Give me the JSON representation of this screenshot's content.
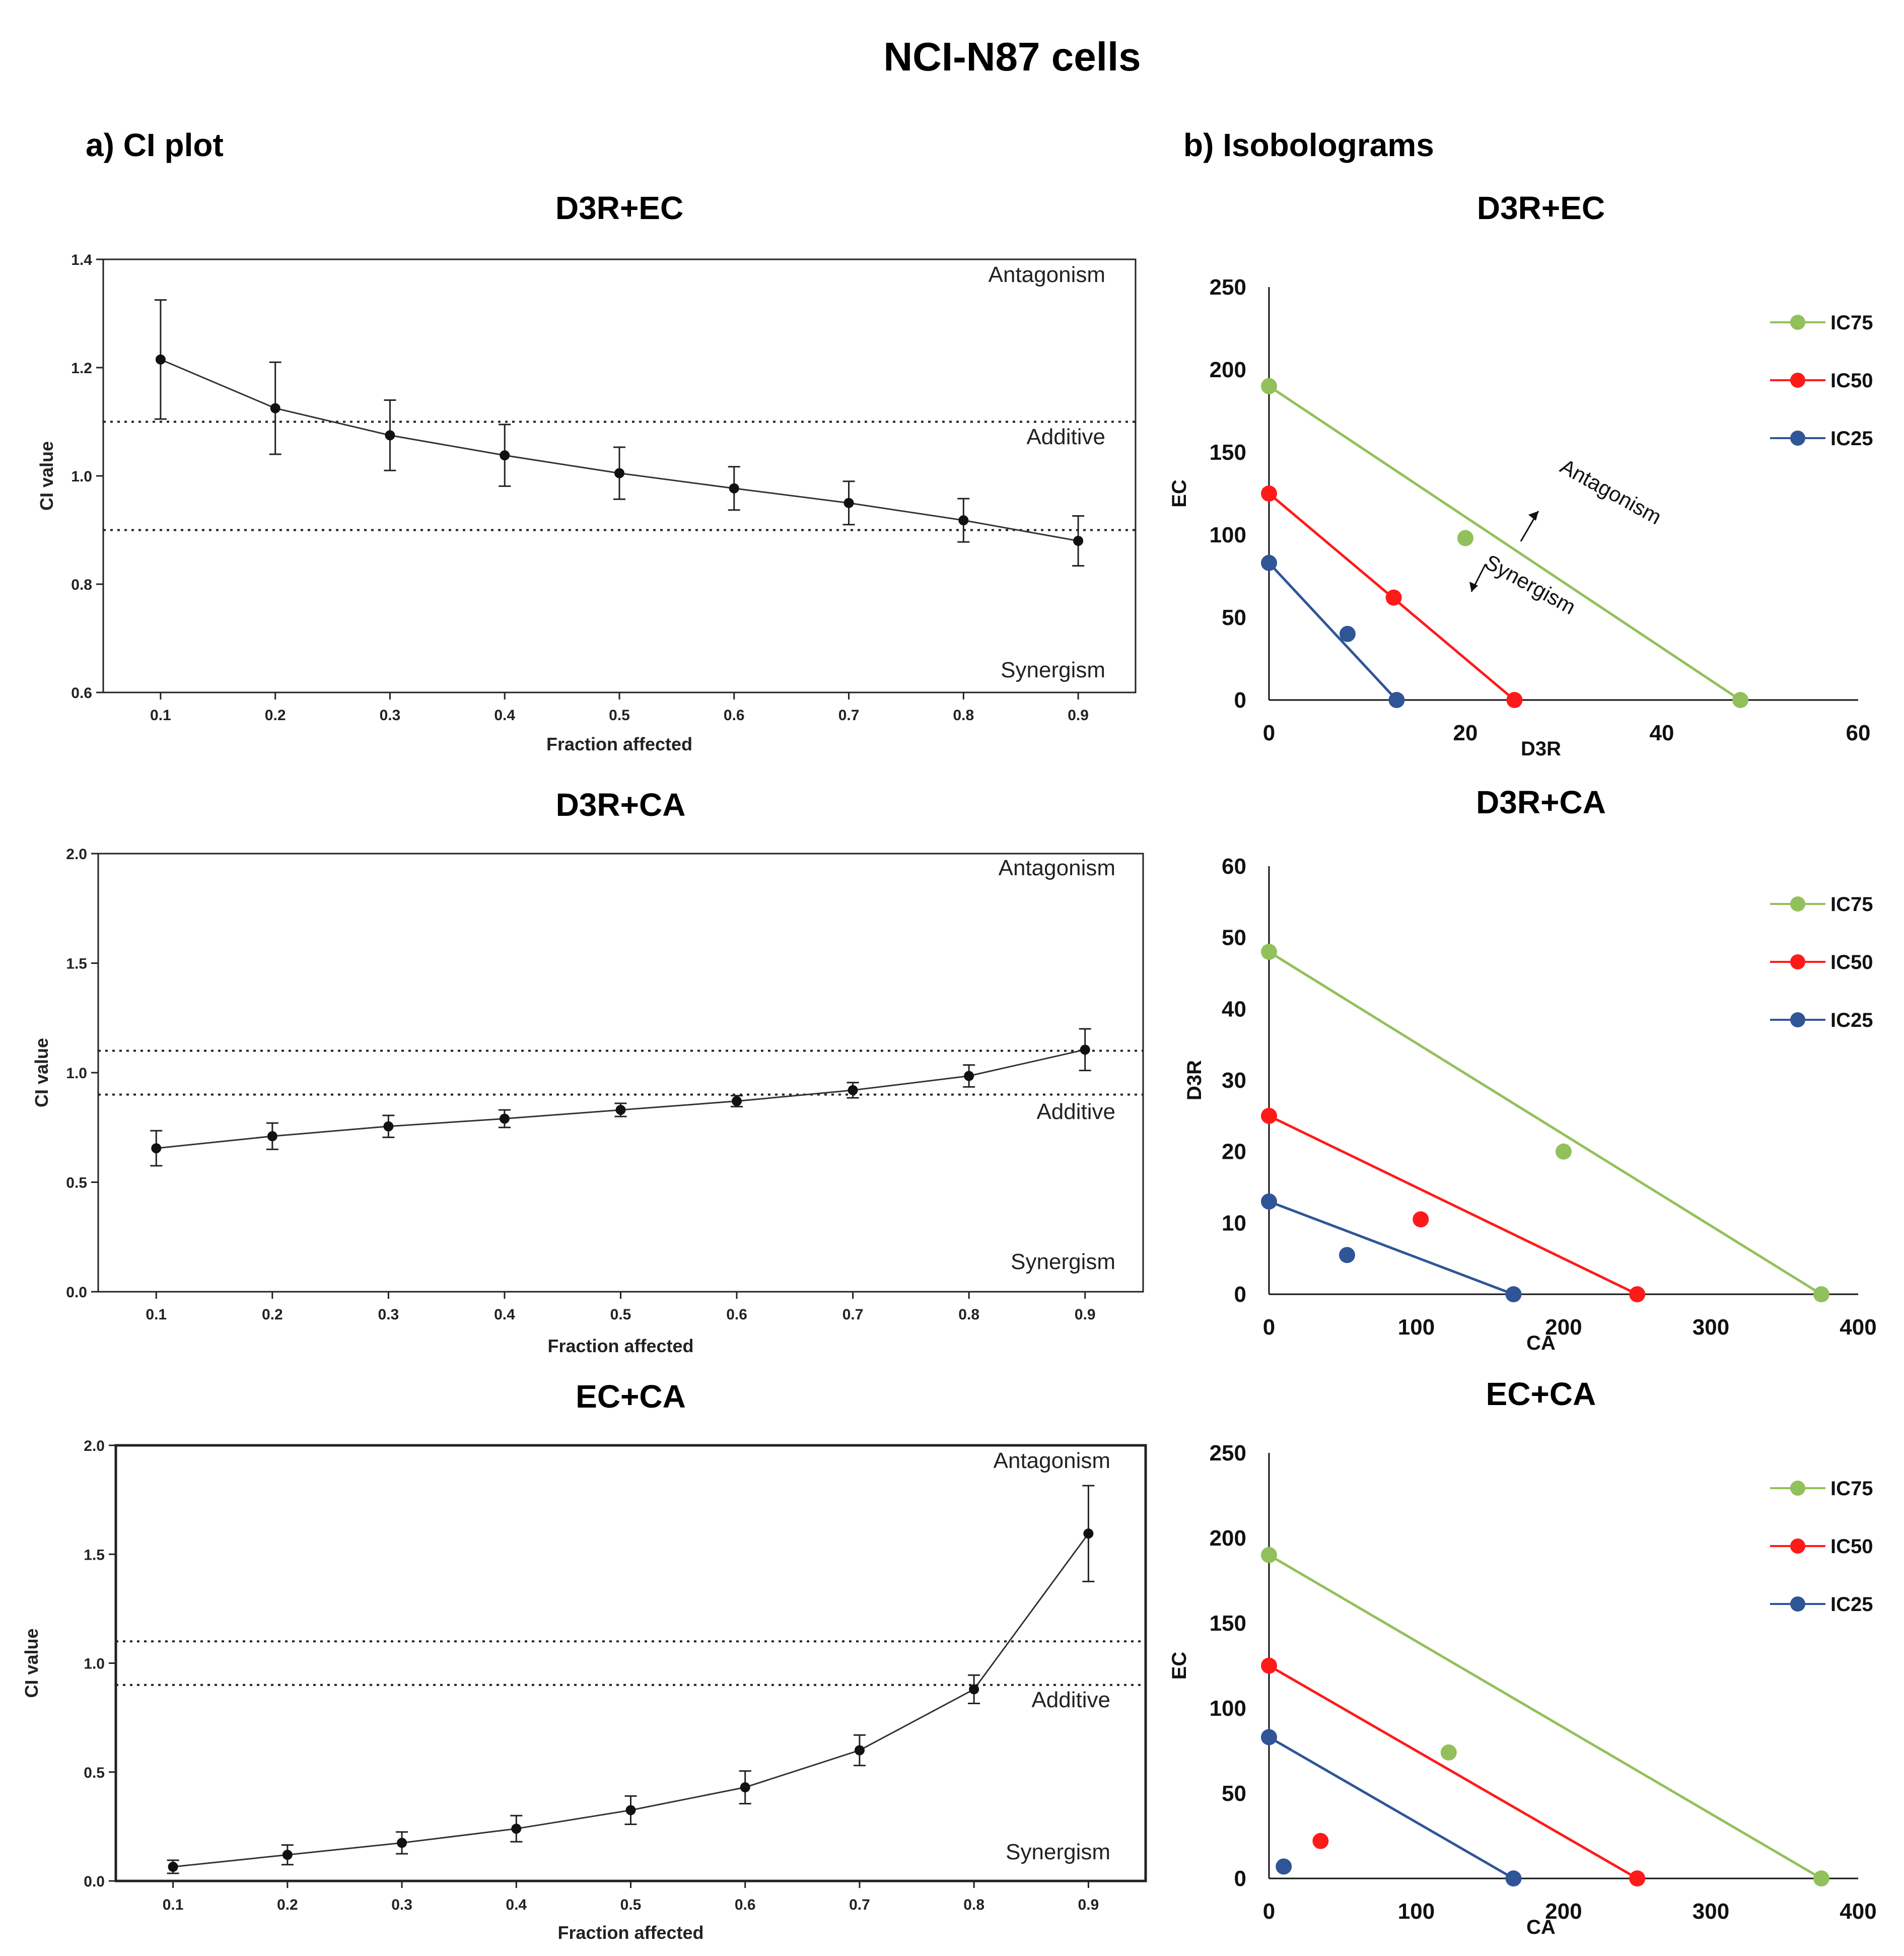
{
  "figure": {
    "main_title": "NCI-N87 cells",
    "section_a": "a) CI plot",
    "section_b": "b) Isobolograms"
  },
  "colors": {
    "ic75": "#92c05a",
    "ic50": "#ff1a1a",
    "ic25": "#2f5597",
    "ci_line": "#333333"
  },
  "chart_data": [
    {
      "id": "ci1",
      "type": "line",
      "title": "D3R+EC",
      "xlabel": "Fraction affected",
      "ylabel": "CI value",
      "xlim": [
        0.05,
        0.95
      ],
      "ylim": [
        0.6,
        1.4
      ],
      "yticks": [
        "0.6",
        "0.8",
        "1.0",
        "1.2",
        "1.4"
      ],
      "xticks": [
        "0.1",
        "0.2",
        "0.3",
        "0.4",
        "0.5",
        "0.6",
        "0.7",
        "0.8",
        "0.9"
      ],
      "x": [
        0.1,
        0.2,
        0.3,
        0.4,
        0.5,
        0.6,
        0.7,
        0.8,
        0.9
      ],
      "y": [
        1.215,
        1.125,
        1.075,
        1.038,
        1.005,
        0.977,
        0.95,
        0.918,
        0.88
      ],
      "err": [
        0.11,
        0.085,
        0.065,
        0.057,
        0.048,
        0.04,
        0.04,
        0.04,
        0.046
      ],
      "thresholds": [
        1.1,
        0.9
      ],
      "regions": {
        "top": "Antagonism",
        "middle": "Additive",
        "bottom": "Synergism"
      }
    },
    {
      "id": "ci2",
      "type": "line",
      "title": "D3R+CA",
      "xlabel": "Fraction affected",
      "ylabel": "CI value",
      "xlim": [
        0.05,
        0.95
      ],
      "ylim": [
        0.0,
        2.0
      ],
      "yticks": [
        "0.0",
        "0.5",
        "1.0",
        "1.5",
        "2.0"
      ],
      "xticks": [
        "0.1",
        "0.2",
        "0.3",
        "0.4",
        "0.5",
        "0.6",
        "0.7",
        "0.8",
        "0.9"
      ],
      "x": [
        0.1,
        0.2,
        0.3,
        0.4,
        0.5,
        0.6,
        0.7,
        0.8,
        0.9
      ],
      "y": [
        0.655,
        0.71,
        0.755,
        0.79,
        0.83,
        0.87,
        0.92,
        0.985,
        1.105
      ],
      "err": [
        0.08,
        0.06,
        0.05,
        0.04,
        0.03,
        0.025,
        0.035,
        0.05,
        0.095
      ],
      "thresholds": [
        1.1,
        0.9
      ],
      "regions": {
        "top": "Antagonism",
        "middle": "Additive",
        "bottom": "Synergism"
      }
    },
    {
      "id": "ci3",
      "type": "line",
      "title": "EC+CA",
      "xlabel": "Fraction affected",
      "ylabel": "CI value",
      "xlim": [
        0.05,
        0.95
      ],
      "ylim": [
        0.0,
        2.0
      ],
      "yticks": [
        "0.0",
        "0.5",
        "1.0",
        "1.5",
        "2.0"
      ],
      "xticks": [
        "0.1",
        "0.2",
        "0.3",
        "0.4",
        "0.5",
        "0.6",
        "0.7",
        "0.8",
        "0.9"
      ],
      "x": [
        0.1,
        0.2,
        0.3,
        0.4,
        0.5,
        0.6,
        0.7,
        0.8,
        0.9
      ],
      "y": [
        0.065,
        0.12,
        0.175,
        0.24,
        0.325,
        0.43,
        0.6,
        0.88,
        1.595
      ],
      "err": [
        0.03,
        0.045,
        0.05,
        0.06,
        0.065,
        0.075,
        0.07,
        0.065,
        0.22
      ],
      "thresholds": [
        1.1,
        0.9
      ],
      "regions": {
        "top": "Antagonism",
        "middle": "Additive",
        "bottom": "Synergism"
      }
    },
    {
      "id": "iso1",
      "type": "scatter",
      "title": "D3R+EC",
      "xlabel": "D3R",
      "ylabel": "EC",
      "xlim": [
        0,
        60
      ],
      "ylim": [
        0,
        250
      ],
      "xticks": [
        "0",
        "20",
        "40",
        "60"
      ],
      "yticks": [
        "0",
        "50",
        "100",
        "150",
        "200",
        "250"
      ],
      "series": [
        {
          "name": "IC75",
          "color": "#92c05a",
          "line": [
            [
              0,
              190
            ],
            [
              48,
              0
            ]
          ],
          "point": [
            20,
            98
          ]
        },
        {
          "name": "IC50",
          "color": "#ff1a1a",
          "line": [
            [
              0,
              125
            ],
            [
              25,
              0
            ]
          ],
          "point": [
            12.7,
            62
          ]
        },
        {
          "name": "IC25",
          "color": "#2f5597",
          "line": [
            [
              0,
              83
            ],
            [
              13,
              0
            ]
          ],
          "point": [
            8,
            40
          ]
        }
      ],
      "annotations": {
        "antagonism": "Antagonism",
        "synergism": "Synergism"
      }
    },
    {
      "id": "iso2",
      "type": "scatter",
      "title": "D3R+CA",
      "xlabel": "CA",
      "ylabel": "D3R",
      "xlim": [
        0,
        400
      ],
      "ylim": [
        0,
        60
      ],
      "xticks": [
        "0",
        "100",
        "200",
        "300",
        "400"
      ],
      "yticks": [
        "0",
        "10",
        "20",
        "30",
        "40",
        "50",
        "60"
      ],
      "series": [
        {
          "name": "IC75",
          "color": "#92c05a",
          "line": [
            [
              0,
              48
            ],
            [
              375,
              0
            ]
          ],
          "point": [
            200,
            20
          ]
        },
        {
          "name": "IC50",
          "color": "#ff1a1a",
          "line": [
            [
              0,
              25
            ],
            [
              250,
              0
            ]
          ],
          "point": [
            103,
            10.5
          ]
        },
        {
          "name": "IC25",
          "color": "#2f5597",
          "line": [
            [
              0,
              13
            ],
            [
              166,
              0
            ]
          ],
          "point": [
            53,
            5.5
          ]
        }
      ]
    },
    {
      "id": "iso3",
      "type": "scatter",
      "title": "EC+CA",
      "xlabel": "CA",
      "ylabel": "EC",
      "xlim": [
        0,
        400
      ],
      "ylim": [
        0,
        250
      ],
      "xticks": [
        "0",
        "100",
        "200",
        "300",
        "400"
      ],
      "yticks": [
        "0",
        "50",
        "100",
        "150",
        "200",
        "250"
      ],
      "series": [
        {
          "name": "IC75",
          "color": "#92c05a",
          "line": [
            [
              0,
              190
            ],
            [
              375,
              0
            ]
          ],
          "point": [
            122,
            74
          ]
        },
        {
          "name": "IC50",
          "color": "#ff1a1a",
          "line": [
            [
              0,
              125
            ],
            [
              250,
              0
            ]
          ],
          "point": [
            35,
            22
          ]
        },
        {
          "name": "IC25",
          "color": "#2f5597",
          "line": [
            [
              0,
              83
            ],
            [
              166,
              0
            ]
          ],
          "point": [
            10,
            7
          ]
        }
      ]
    }
  ]
}
